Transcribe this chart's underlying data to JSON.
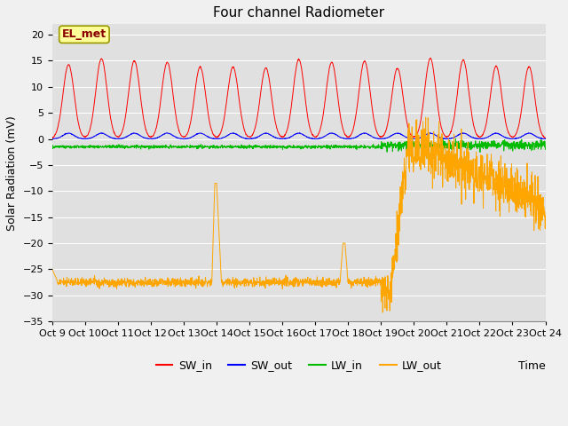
{
  "title": "Four channel Radiometer",
  "xlabel": "Time",
  "ylabel": "Solar Radiation (mV)",
  "ylim": [
    -35,
    22
  ],
  "yticks": [
    -35,
    -30,
    -25,
    -20,
    -15,
    -10,
    -5,
    0,
    5,
    10,
    15,
    20
  ],
  "x_labels": [
    "Oct 9",
    "Oct 10Oct 11Oct 12Oct 13Oct 14Oct 15Oct 16Oct 17Oct 18Oct 19Oct 20Oct 21Oct 22Oct 23Oct 24"
  ],
  "colors": {
    "SW_in": "#FF0000",
    "SW_out": "#0000FF",
    "LW_in": "#00BB00",
    "LW_out": "#FFA500"
  },
  "annotation_label": "EL_met",
  "fig_bg": "#F0F0F0",
  "plot_bg": "#E0E0E0",
  "grid_color": "#FFFFFF",
  "title_fontsize": 11,
  "axis_fontsize": 9,
  "tick_fontsize": 8,
  "legend_fontsize": 9
}
